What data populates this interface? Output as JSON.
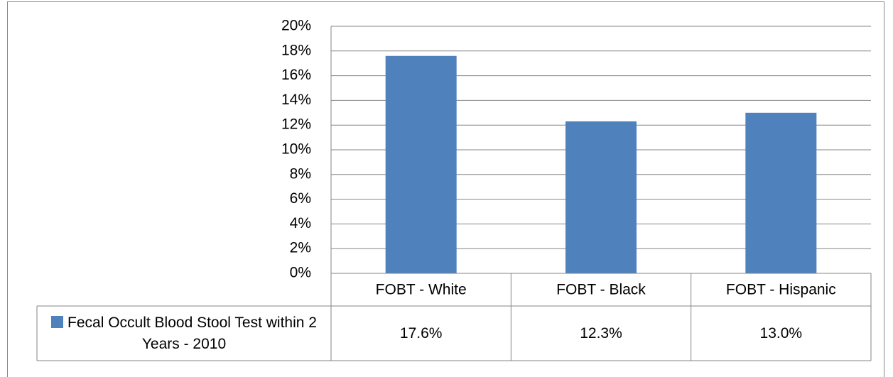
{
  "chart_data": {
    "type": "bar",
    "categories": [
      "FOBT - White",
      "FOBT - Black",
      "FOBT - Hispanic"
    ],
    "series": [
      {
        "name": "Fecal Occult Blood Stool Test within 2 Years - 2010",
        "color": "#4f81bd",
        "values": [
          17.6,
          12.3,
          13.0
        ],
        "value_labels": [
          "17.6%",
          "12.3%",
          "13.0%"
        ]
      }
    ],
    "ylim": [
      0,
      20
    ],
    "yticks": [
      {
        "value": 0,
        "label": "0%"
      },
      {
        "value": 2,
        "label": "2%"
      },
      {
        "value": 4,
        "label": "4%"
      },
      {
        "value": 6,
        "label": "6%"
      },
      {
        "value": 8,
        "label": "8%"
      },
      {
        "value": 10,
        "label": "10%"
      },
      {
        "value": 12,
        "label": "12%"
      },
      {
        "value": 14,
        "label": "14%"
      },
      {
        "value": 16,
        "label": "16%"
      },
      {
        "value": 18,
        "label": "18%"
      },
      {
        "value": 20,
        "label": "20%"
      }
    ],
    "grid": true,
    "data_table": true
  }
}
